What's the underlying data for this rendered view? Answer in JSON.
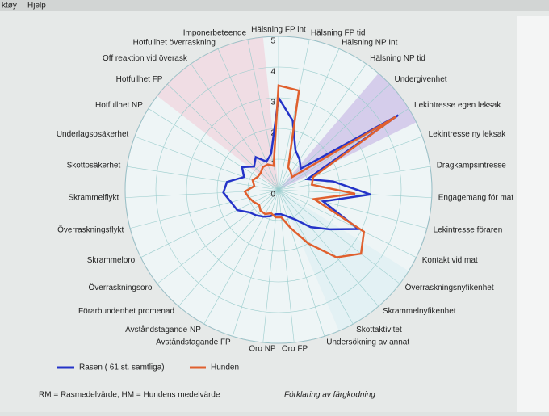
{
  "menu": [
    "ktøy",
    "Hjelp"
  ],
  "chart_data": {
    "type": "radar",
    "categories": [
      "Hälsning FP int",
      "Hälsning FP tid",
      "Hälsning NP Int",
      "Hälsning NP tid",
      "Undergivenhet",
      "Lekintresse egen leksak",
      "Lekintresse ny leksak",
      "Dragkampsintresse",
      "Engagemang för mat",
      "Lekintresse föraren",
      "Kontakt vid mat",
      "Överraskningsnyfikenhet",
      "Skrammelnyfikenhet",
      "Skottaktivitet",
      "Undersökning av annat",
      "Oro FP",
      "Oro NP",
      "Avståndstagande FP",
      "Avståndstagande NP",
      "Förarbundenhet promenad",
      "Överraskningsoro",
      "Skrammeloro",
      "Överraskningsflykt",
      "Skrammelflykt",
      "Skottosäkerhet",
      "Underlagsosäkerhet",
      "Hotfullhet NP",
      "Hotfullhet FP",
      "Off reaktion vid överask",
      "Hotfullhet överraskning",
      "Imponerbeteende"
    ],
    "series": [
      {
        "name": "Rasen ( 61 st. samtliga)",
        "color": "#2433c8",
        "values": [
          3.0,
          2.3,
          1.4,
          1.2,
          1.0,
          4.6,
          1.0,
          1.8,
          3.0,
          1.5,
          2.9,
          2.1,
          1.6,
          1.1,
          0.9,
          0.8,
          0.8,
          0.9,
          1.0,
          1.1,
          1.2,
          1.5,
          1.6,
          1.8,
          1.7,
          1.2,
          1.4,
          1.1,
          1.3,
          1.0,
          1.2
        ]
      },
      {
        "name": "Hunden",
        "color": "#e0602e",
        "values": [
          3.4,
          3.3,
          0.8,
          0.7,
          0.6,
          4.5,
          1.2,
          1.1,
          2.5,
          1.2,
          3.1,
          3.4,
          2.9,
          2.0,
          1.3,
          0.9,
          0.9,
          0.8,
          0.9,
          0.9,
          0.8,
          0.9,
          1.0,
          1.1,
          0.8,
          0.9,
          0.8,
          0.8,
          0.9,
          0.9,
          0.8
        ]
      }
    ],
    "rlim": [
      0,
      5
    ],
    "rticks": [
      0,
      1,
      2,
      3,
      4,
      5
    ],
    "grid": true,
    "legend": "bottom"
  },
  "notes": {
    "abbrev": "RM = Rasmedelvärde,    HM = Hundens medelvärde",
    "colors": "Förklaring av färgkodning"
  }
}
